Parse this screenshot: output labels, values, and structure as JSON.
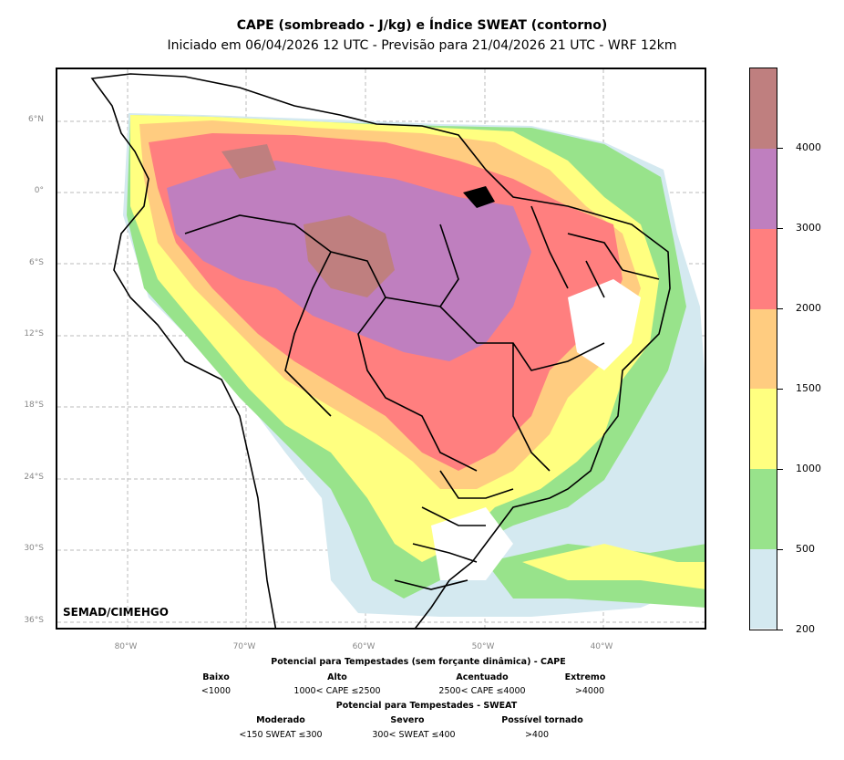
{
  "title": {
    "main": "CAPE (sombreado - J/kg) e Índice SWEAT (contorno)",
    "sub": "Iniciado em 06/04/2026 12 UTC - Previsão para 21/04/2026 21 UTC - WRF 12km"
  },
  "map": {
    "credit": "SEMAD/CIMEHGO",
    "lat_ticks": [
      "6°N",
      "0°",
      "6°S",
      "12°S",
      "18°S",
      "24°S",
      "30°S",
      "36°S"
    ],
    "lon_ticks": [
      "80°W",
      "70°W",
      "60°W",
      "50°W",
      "40°W"
    ]
  },
  "colorbar": {
    "levels": [
      "200",
      "500",
      "1000",
      "1500",
      "2000",
      "3000",
      "4000"
    ],
    "colors": [
      "#d4e9f0",
      "#98e38b",
      "#ffff80",
      "#ffcc80",
      "#ff7f7f",
      "#bf7fbf",
      "#bf7f7f"
    ]
  },
  "legend": {
    "cape_title": "Potencial para Tempestades (sem forçante dinâmica) - CAPE",
    "cape": [
      {
        "name": "Baixo",
        "range": "<1000"
      },
      {
        "name": "Alto",
        "range": "1000< CAPE ≤2500"
      },
      {
        "name": "Acentuado",
        "range": "2500< CAPE ≤4000"
      },
      {
        "name": "Extremo",
        "range": ">4000"
      }
    ],
    "sweat_title": "Potencial para Tempestades - SWEAT",
    "sweat": [
      {
        "name": "Moderado",
        "range": "<150 SWEAT ≤300"
      },
      {
        "name": "Severo",
        "range": "300< SWEAT ≤400"
      },
      {
        "name": "Possível tornado",
        "range": ">400"
      }
    ]
  }
}
